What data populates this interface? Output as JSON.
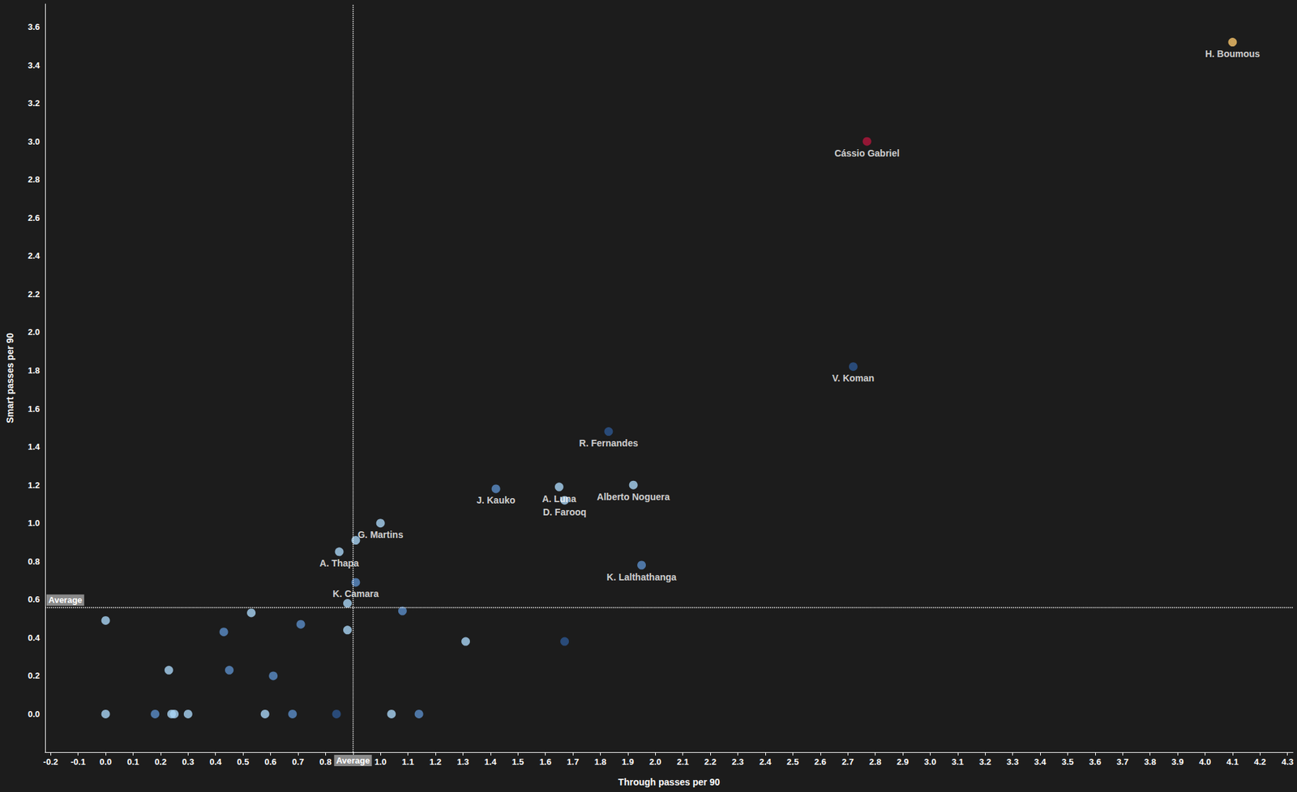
{
  "chart_data": {
    "type": "scatter",
    "x_label": "Through passes per 90",
    "y_label": "Smart passes per 90",
    "xlim": [
      -0.22,
      4.32
    ],
    "ylim": [
      -0.2,
      3.72
    ],
    "xticks": [
      -0.2,
      -0.1,
      {
        "value": 0,
        "label": "0.0"
      },
      0.1,
      0.2,
      0.3,
      0.4,
      0.5,
      0.6,
      0.7,
      0.8,
      0.9,
      {
        "value": 1,
        "label": "1.0"
      },
      1.1,
      1.2,
      1.3,
      1.4,
      1.5,
      1.6,
      1.7,
      1.8,
      1.9,
      {
        "value": 2,
        "label": "2.0"
      },
      2.1,
      2.2,
      2.3,
      2.4,
      2.5,
      2.6,
      2.7,
      2.8,
      2.9,
      {
        "value": 3,
        "label": "3.0"
      },
      3.1,
      3.2,
      3.3,
      3.4,
      3.5,
      3.6,
      3.7,
      3.8,
      3.9,
      {
        "value": 4,
        "label": "4.0"
      },
      4.1,
      4.2,
      4.3
    ],
    "yticks": [
      {
        "value": 0,
        "label": "0.0"
      },
      0.2,
      0.4,
      0.6,
      0.8,
      {
        "value": 1,
        "label": "1.0"
      },
      1.2,
      1.4,
      1.6,
      1.8,
      {
        "value": 2,
        "label": "2.0"
      },
      2.2,
      2.4,
      2.6,
      2.8,
      {
        "value": 3,
        "label": "3.0"
      },
      3.2,
      3.4,
      3.6
    ],
    "grid": false,
    "averages": {
      "x": 0.9,
      "y": 0.56,
      "label": "Average"
    },
    "x": [
      4.1,
      2.77,
      2.72,
      1.83,
      1.42,
      1.65,
      1.67,
      1.92,
      1.95,
      1.0,
      0.85,
      0.91,
      0.91,
      0.88,
      1.08,
      0.88,
      1.31,
      1.67,
      0.53,
      0.71,
      0.43,
      0.0,
      0.23,
      0.45,
      0.61,
      0.0,
      0.18,
      0.24,
      0.25,
      0.3,
      0.58,
      0.68,
      0.84,
      1.04,
      1.14
    ],
    "values": [
      3.52,
      3.0,
      1.82,
      1.48,
      1.18,
      1.19,
      1.12,
      1.2,
      0.78,
      1.0,
      0.85,
      0.91,
      0.69,
      0.58,
      0.54,
      0.44,
      0.38,
      0.38,
      0.53,
      0.47,
      0.43,
      0.49,
      0.23,
      0.23,
      0.2,
      0.0,
      0.0,
      0.0,
      0.0,
      0.0,
      0.0,
      0.0,
      0.0,
      0.0,
      0.0
    ],
    "labels": [
      "H. Boumous",
      "Cássio Gabriel",
      "V. Koman",
      "R. Fernandes",
      "J. Kauko",
      "A. Luna",
      "D. Farooq",
      "Alberto Noguera",
      "K. Lalthathanga",
      "G. Martins",
      "A. Thapa",
      null,
      "K. Camara",
      null,
      null,
      null,
      null,
      null,
      null,
      null,
      null,
      null,
      null,
      null,
      null,
      null,
      null,
      null,
      null,
      null,
      null,
      null,
      null,
      null,
      null
    ],
    "colors": [
      "#f7c46c",
      "#b3163c",
      "#2d5690",
      "#2d5690",
      "#5b8dc8",
      "#a9d4f5",
      "#a9d4f5",
      "#a9d4f5",
      "#5b8dc8",
      "#a9d4f5",
      "#a9d4f5",
      "#a9d4f5",
      "#5b8dc8",
      "#a9d4f5",
      "#5b8dc8",
      "#a9d4f5",
      "#a9d4f5",
      "#2d5690",
      "#a9d4f5",
      "#5b8dc8",
      "#5b8dc8",
      "#a9d4f5",
      "#a9d4f5",
      "#5b8dc8",
      "#5b8dc8",
      "#a9d4f5",
      "#5b8dc8",
      "#a9d4f5",
      "#a9d4f5",
      "#a9d4f5",
      "#a9d4f5",
      "#5b8dc8",
      "#2d5690",
      "#a9d4f5",
      "#5b8dc8"
    ]
  }
}
